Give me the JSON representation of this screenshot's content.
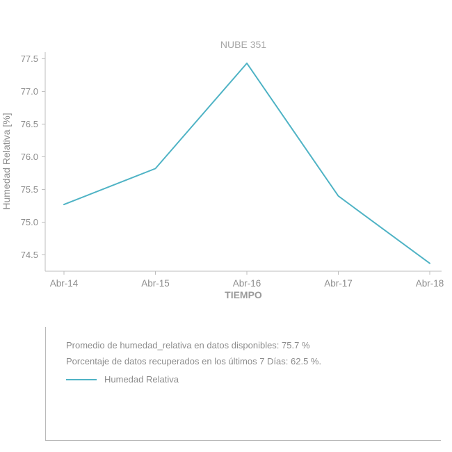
{
  "chart": {
    "title": "NUBE 351",
    "ylabel": "Humedad Relativa [%]",
    "xlabel": "TIEMPO"
  },
  "chart_data": {
    "type": "line",
    "title": "NUBE 351",
    "xlabel": "TIEMPO",
    "ylabel": "Humedad Relativa [%]",
    "categories": [
      "Abr-14",
      "Abr-15",
      "Abr-16",
      "Abr-17",
      "Abr-18"
    ],
    "series": [
      {
        "name": "Humedad Relativa",
        "values": [
          75.27,
          75.82,
          77.43,
          75.4,
          74.37
        ]
      }
    ],
    "ylim": [
      74.25,
      77.6
    ],
    "yticks": [
      74.5,
      75.0,
      75.5,
      76.0,
      76.5,
      77.0,
      77.5
    ],
    "grid": false,
    "legend_position": "bottom-panel",
    "line_color": "#4fb3c5"
  },
  "summary_panel": {
    "line1": "Promedio de humedad_relativa en datos disponibles: 75.7 %",
    "line2": "Porcentaje de datos recuperados en los últimos 7 Días: 62.5 %.",
    "legend_label": "Humedad Relativa"
  },
  "colors": {
    "accent": "#4fb3c5",
    "text": "#8c8c8c",
    "title_text": "#a6a6a6",
    "axis": "#bdbdbd"
  }
}
